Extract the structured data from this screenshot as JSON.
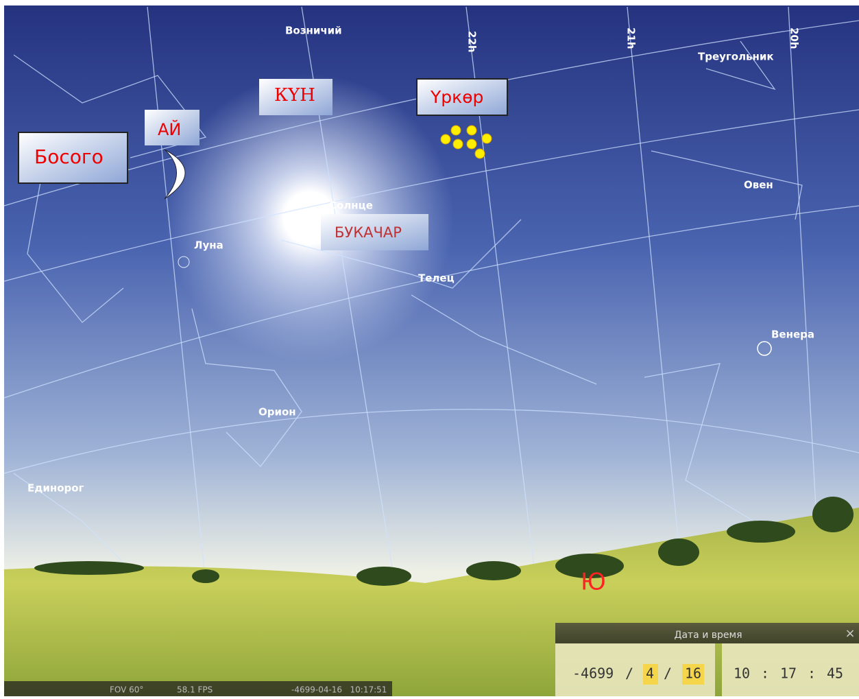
{
  "sky_labels": {
    "auriga": "Возничий",
    "triangulum": "Треугольник",
    "aries": "Овен",
    "taurus": "Телец",
    "moon": "Луна",
    "sun": "Солнце",
    "orion": "Орион",
    "monoceros": "Единорог",
    "venus": "Венера"
  },
  "hour_labels": [
    "22h",
    "21h",
    "20h"
  ],
  "annotations": {
    "sun": "КҮН",
    "moon": "АЙ",
    "left": "Босого",
    "pleiades": "Үркөр",
    "taurus": "БУКАЧАР",
    "south": "Ю"
  },
  "date_time_panel": {
    "title": "Дата и время",
    "close": "×",
    "year": "-4699",
    "month": "4",
    "day": "16",
    "hour": "10",
    "minute": "17",
    "second": "45",
    "date_separator": "/",
    "time_separator": ":"
  },
  "status_bar": {
    "fov": "FOV 60°",
    "fps": "58.1 FPS",
    "datetime": "-4699-04-16   10:17:51"
  }
}
